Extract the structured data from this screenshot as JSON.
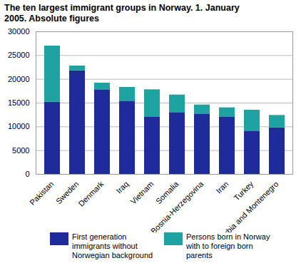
{
  "chart_data": {
    "type": "bar",
    "title": "The ten largest immigrant groups in Norway. 1. January 2005. Absolute figures",
    "stacked": true,
    "grid": true,
    "legend": "bottom",
    "categories": [
      "Pakistan",
      "Sweden",
      "Denmark",
      "Iraq",
      "Vietnam",
      "Somalia",
      "Bosnia-Herzegovina",
      "Iran",
      "Turkey",
      "Serbia and Montenegro"
    ],
    "series": [
      {
        "name": "First generation immigrants without Norwegian background",
        "color": "#1f2b9a",
        "values": [
          15200,
          21800,
          17800,
          15400,
          12000,
          13000,
          12700,
          12000,
          9100,
          9800
        ]
      },
      {
        "name": "Persons born in Norway with to foreign born parents",
        "color": "#1ea2a2",
        "values": [
          11800,
          1000,
          1400,
          2900,
          5800,
          3700,
          1900,
          2000,
          4400,
          2600
        ]
      }
    ],
    "ylim": [
      0,
      30000
    ],
    "yticks": [
      0,
      5000,
      10000,
      15000,
      20000,
      25000,
      30000
    ]
  }
}
